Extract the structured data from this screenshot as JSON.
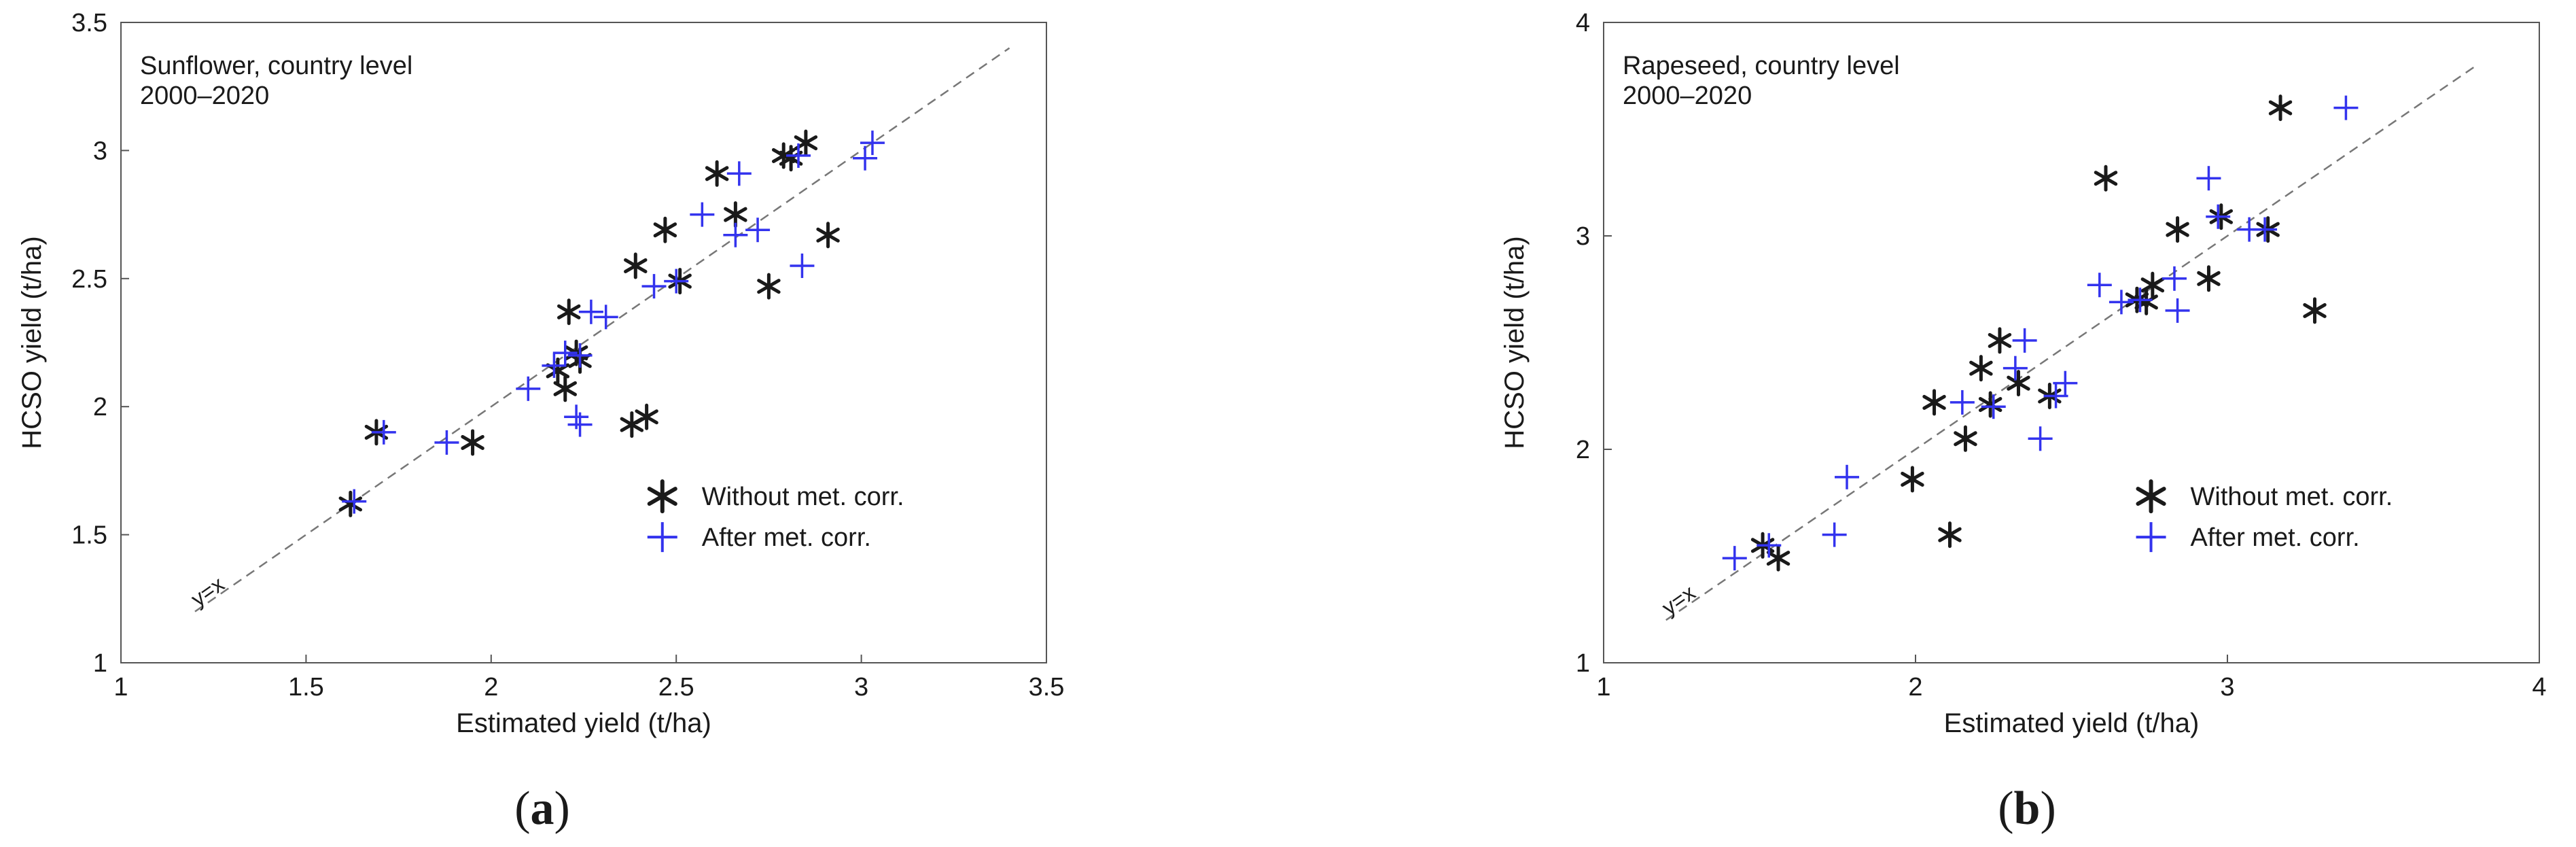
{
  "chart_data": [
    {
      "type": "scatter",
      "annotation_lines": [
        "Sunflower, country level",
        "2000–2020"
      ],
      "xlabel": "Estimated yield (t/ha)",
      "ylabel": "HCSO yield (t/ha)",
      "xlim": [
        1,
        3.5
      ],
      "ylim": [
        1,
        3.5
      ],
      "x_ticks": [
        "1",
        "1.5",
        "2",
        "2.5",
        "3",
        "3.5"
      ],
      "y_ticks": [
        "1",
        "1.5",
        "2",
        "2.5",
        "3",
        "3.5"
      ],
      "reference_line": {
        "label": "y=x",
        "from": [
          1.2,
          1.2
        ],
        "to": [
          3.4,
          3.4
        ]
      },
      "panel_label": "a",
      "grid": false,
      "legend_position": "lower-right",
      "series": [
        {
          "name": "Without met. corr.",
          "marker": "asterisk",
          "color": "#1a1a1a",
          "points": [
            [
              1.62,
              1.62
            ],
            [
              1.69,
              1.9
            ],
            [
              1.95,
              1.86
            ],
            [
              2.18,
              2.14
            ],
            [
              2.2,
              2.07
            ],
            [
              2.21,
              2.37
            ],
            [
              2.23,
              2.21
            ],
            [
              2.24,
              2.18
            ],
            [
              2.38,
              1.93
            ],
            [
              2.42,
              1.96
            ],
            [
              2.39,
              2.55
            ],
            [
              2.47,
              2.69
            ],
            [
              2.51,
              2.49
            ],
            [
              2.61,
              2.91
            ],
            [
              2.66,
              2.75
            ],
            [
              2.75,
              2.47
            ],
            [
              2.79,
              2.98
            ],
            [
              2.85,
              3.03
            ],
            [
              2.91,
              2.67
            ],
            [
              2.81,
              2.97
            ]
          ]
        },
        {
          "name": "After met. corr.",
          "marker": "plus",
          "color": "#3333ee",
          "points": [
            [
              1.63,
              1.63
            ],
            [
              1.71,
              1.9
            ],
            [
              1.88,
              1.86
            ],
            [
              2.1,
              2.07
            ],
            [
              2.17,
              2.16
            ],
            [
              2.2,
              2.21
            ],
            [
              2.23,
              1.96
            ],
            [
              2.24,
              1.93
            ],
            [
              2.24,
              2.2
            ],
            [
              2.27,
              2.37
            ],
            [
              2.31,
              2.35
            ],
            [
              2.44,
              2.47
            ],
            [
              2.5,
              2.49
            ],
            [
              2.57,
              2.75
            ],
            [
              2.66,
              2.67
            ],
            [
              2.67,
              2.91
            ],
            [
              2.72,
              2.69
            ],
            [
              2.83,
              2.98
            ],
            [
              2.84,
              2.55
            ],
            [
              3.01,
              2.97
            ],
            [
              3.03,
              3.03
            ]
          ]
        }
      ]
    },
    {
      "type": "scatter",
      "annotation_lines": [
        "Rapeseed, country level",
        "2000–2020"
      ],
      "xlabel": "Estimated yield (t/ha)",
      "ylabel": "HCSO yield (t/ha)",
      "xlim": [
        1,
        4
      ],
      "ylim": [
        1,
        4
      ],
      "x_ticks": [
        "1",
        "2",
        "3",
        "4"
      ],
      "y_ticks": [
        "1",
        "2",
        "3",
        "4"
      ],
      "reference_line": {
        "label": "y=x",
        "from": [
          1.2,
          1.2
        ],
        "to": [
          3.8,
          3.8
        ]
      },
      "panel_label": "b",
      "grid": false,
      "legend_position": "lower-right",
      "series": [
        {
          "name": "Without met. corr.",
          "marker": "asterisk",
          "color": "#1a1a1a",
          "points": [
            [
              1.51,
              1.55
            ],
            [
              1.56,
              1.49
            ],
            [
              1.99,
              1.86
            ],
            [
              2.06,
              2.22
            ],
            [
              2.11,
              1.6
            ],
            [
              2.16,
              2.05
            ],
            [
              2.21,
              2.38
            ],
            [
              2.24,
              2.21
            ],
            [
              2.27,
              2.51
            ],
            [
              2.33,
              2.31
            ],
            [
              2.43,
              2.25
            ],
            [
              2.61,
              3.27
            ],
            [
              2.71,
              2.7
            ],
            [
              2.74,
              2.69
            ],
            [
              2.76,
              2.77
            ],
            [
              2.84,
              3.03
            ],
            [
              2.94,
              2.8
            ],
            [
              2.98,
              3.09
            ],
            [
              3.13,
              3.03
            ],
            [
              3.17,
              3.6
            ],
            [
              3.28,
              2.65
            ]
          ]
        },
        {
          "name": "After met. corr.",
          "marker": "plus",
          "color": "#3333ee",
          "points": [
            [
              1.42,
              1.49
            ],
            [
              1.53,
              1.55
            ],
            [
              1.74,
              1.6
            ],
            [
              1.78,
              1.87
            ],
            [
              2.15,
              2.22
            ],
            [
              2.25,
              2.2
            ],
            [
              2.32,
              2.38
            ],
            [
              2.35,
              2.51
            ],
            [
              2.4,
              2.05
            ],
            [
              2.45,
              2.25
            ],
            [
              2.48,
              2.31
            ],
            [
              2.59,
              2.77
            ],
            [
              2.66,
              2.69
            ],
            [
              2.72,
              2.7
            ],
            [
              2.83,
              2.8
            ],
            [
              2.84,
              2.65
            ],
            [
              2.94,
              3.27
            ],
            [
              2.97,
              3.09
            ],
            [
              3.07,
              3.03
            ],
            [
              3.12,
              3.03
            ],
            [
              3.38,
              3.6
            ]
          ]
        }
      ]
    }
  ]
}
